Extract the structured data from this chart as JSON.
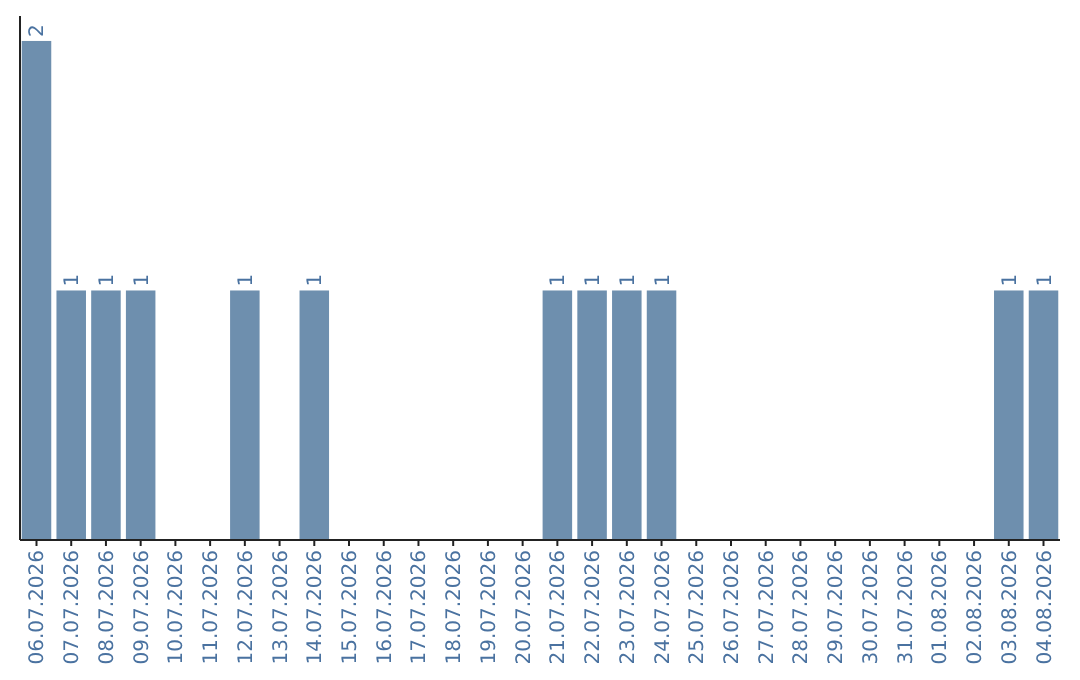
{
  "chart_data": {
    "type": "bar",
    "categories": [
      "06.07.2026",
      "07.07.2026",
      "08.07.2026",
      "09.07.2026",
      "10.07.2026",
      "11.07.2026",
      "12.07.2026",
      "13.07.2026",
      "14.07.2026",
      "15.07.2026",
      "16.07.2026",
      "17.07.2026",
      "18.07.2026",
      "19.07.2026",
      "20.07.2026",
      "21.07.2026",
      "22.07.2026",
      "23.07.2026",
      "24.07.2026",
      "25.07.2026",
      "26.07.2026",
      "27.07.2026",
      "28.07.2026",
      "29.07.2026",
      "30.07.2026",
      "31.07.2026",
      "01.08.2026",
      "02.08.2026",
      "03.08.2026",
      "04.08.2026"
    ],
    "values": [
      2,
      1,
      1,
      1,
      0,
      0,
      1,
      0,
      1,
      0,
      0,
      0,
      0,
      0,
      0,
      1,
      1,
      1,
      1,
      0,
      0,
      0,
      0,
      0,
      0,
      0,
      0,
      0,
      1,
      1
    ],
    "value_labels": [
      "2",
      "1",
      "1",
      "1",
      null,
      null,
      "1",
      null,
      "1",
      null,
      null,
      null,
      null,
      null,
      null,
      "1",
      "1",
      "1",
      "1",
      null,
      null,
      null,
      null,
      null,
      null,
      null,
      null,
      null,
      "1",
      "1"
    ],
    "color": "#6e8fae"
  }
}
